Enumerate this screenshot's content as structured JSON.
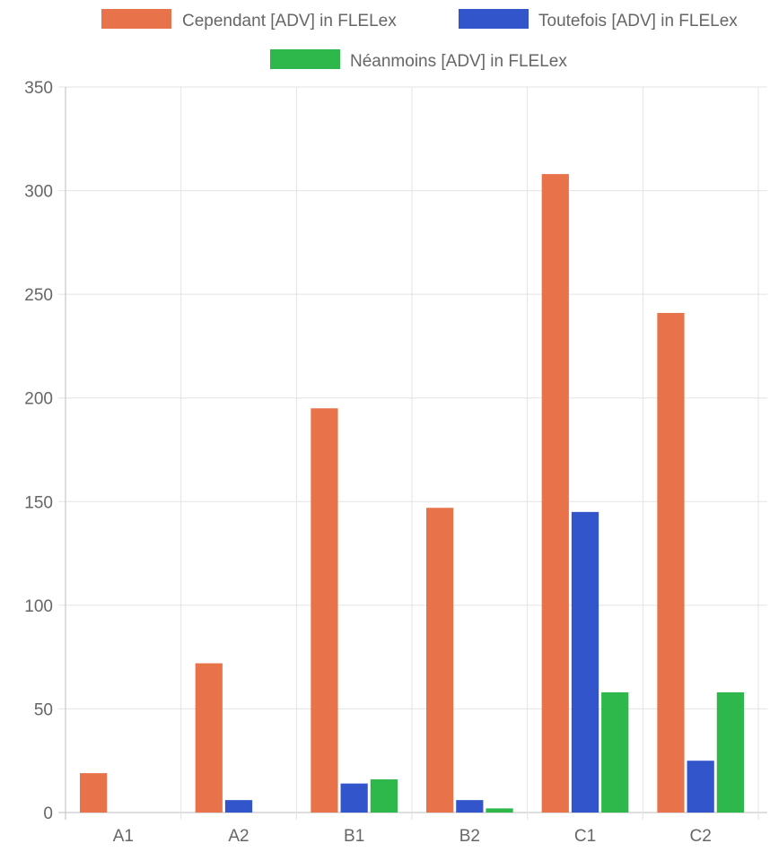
{
  "chart_data": {
    "type": "bar",
    "categories": [
      "A1",
      "A2",
      "B1",
      "B2",
      "C1",
      "C2"
    ],
    "series": [
      {
        "name": "Cependant [ADV] in FLELex",
        "color": "#e8734a",
        "values": [
          19,
          72,
          195,
          147,
          308,
          241
        ]
      },
      {
        "name": "Toutefois [ADV] in FLELex",
        "color": "#3355cc",
        "values": [
          0,
          6,
          14,
          6,
          145,
          25
        ]
      },
      {
        "name": "Néanmoins [ADV] in FLELex",
        "color": "#2eb84b",
        "values": [
          0,
          0,
          16,
          2,
          58,
          58
        ]
      }
    ],
    "yticks": [
      "0",
      "50",
      "100",
      "150",
      "200",
      "250",
      "300",
      "350"
    ],
    "ylim": [
      0,
      350
    ],
    "grid": true,
    "legend_position": "top"
  }
}
